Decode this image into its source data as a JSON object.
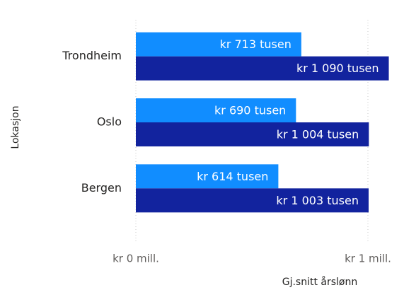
{
  "chart_data": {
    "type": "hbar",
    "y_label": "Lokasjon",
    "x_label": "Gj.snitt årslønn",
    "categories": [
      "Trondheim",
      "Oslo",
      "Bergen"
    ],
    "series": [
      {
        "color": "#118DFF",
        "values": [
          713000,
          690000,
          614000
        ],
        "value_labels": [
          "kr 713 tusen",
          "kr 690 tusen",
          "kr 614 tusen"
        ]
      },
      {
        "color": "#12239E",
        "values": [
          1090000,
          1004000,
          1003000
        ],
        "value_labels": [
          "kr 1 090 tusen",
          "kr 1 004 tusen",
          "kr 1 003 tusen"
        ]
      }
    ],
    "xlim": [
      0,
      1100000
    ],
    "xticks": [
      {
        "value": 0,
        "label": "kr 0 mill."
      },
      {
        "value": 1000000,
        "label": "kr 1 mill."
      }
    ],
    "grid": true
  }
}
